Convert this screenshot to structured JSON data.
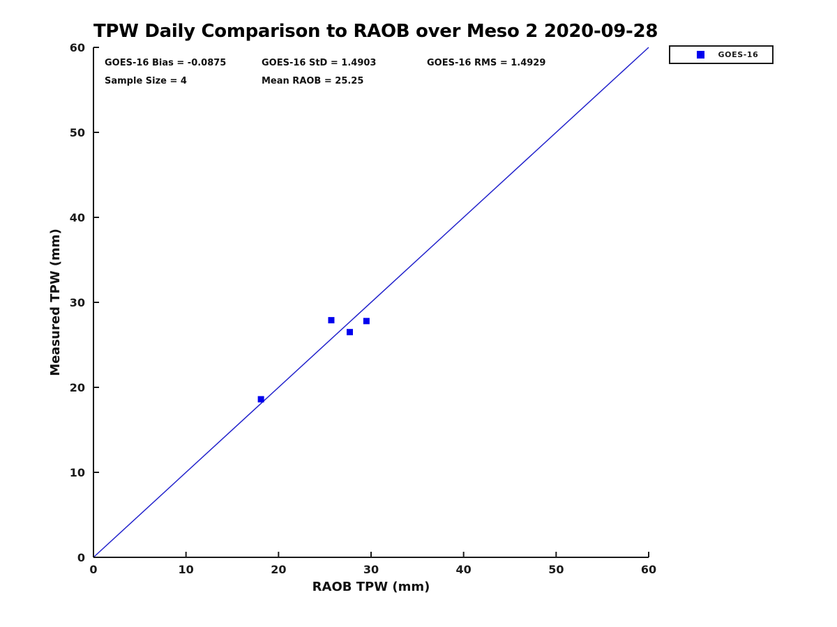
{
  "chart_data": {
    "type": "scatter",
    "title": "TPW Daily Comparison to RAOB over Meso 2 2020-09-28",
    "xlabel": "RAOB TPW (mm)",
    "ylabel": "Measured TPW (mm)",
    "xlim": [
      0,
      60
    ],
    "ylim": [
      0,
      60
    ],
    "xticks": [
      0,
      10,
      20,
      30,
      40,
      50,
      60
    ],
    "yticks": [
      0,
      10,
      20,
      30,
      40,
      50,
      60
    ],
    "grid": false,
    "series": [
      {
        "name": "GOES-16",
        "marker": "square",
        "color": "#0000ee",
        "points": [
          [
            18.1,
            18.6
          ],
          [
            25.7,
            27.9
          ],
          [
            27.7,
            26.5
          ],
          [
            29.5,
            27.8
          ]
        ]
      }
    ],
    "reference_line": {
      "from": [
        0,
        0
      ],
      "to": [
        60,
        60
      ],
      "color": "#2323cc",
      "meaning": "1:1 line"
    },
    "annotations": {
      "bias": "GOES-16 Bias = -0.0875",
      "std": "GOES-16 StD = 1.4903",
      "rms": "GOES-16 RMS = 1.4929",
      "sample_size": "Sample Size = 4",
      "mean_raob": "Mean RAOB = 25.25"
    },
    "legend": {
      "position": "top-right-outside",
      "entries": [
        {
          "label": "GOES-16",
          "marker": "square",
          "color": "#0000ee"
        }
      ]
    },
    "colors": {
      "axis": "#1a1a1a",
      "text": "#000000",
      "background": "#ffffff"
    }
  }
}
